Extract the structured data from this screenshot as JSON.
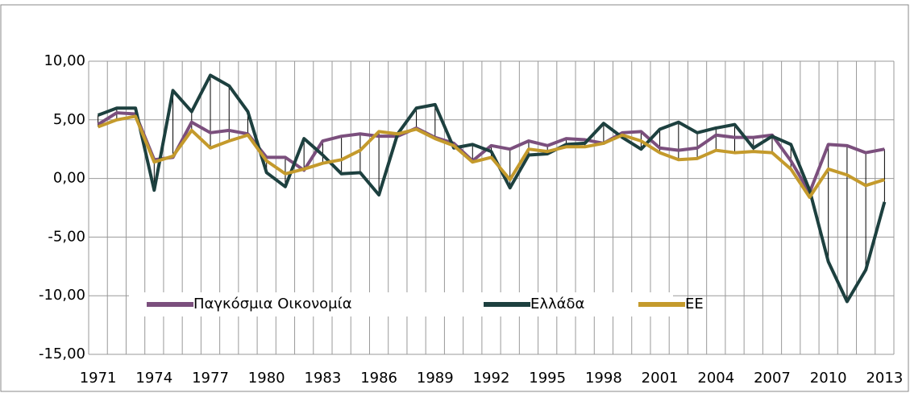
{
  "chart_data": {
    "type": "line",
    "categories": [
      "1971",
      null,
      null,
      "1974",
      null,
      null,
      "1977",
      null,
      null,
      "1980",
      null,
      null,
      "1983",
      null,
      null,
      "1986",
      null,
      null,
      "1989",
      null,
      null,
      "1992",
      null,
      null,
      "1995",
      null,
      null,
      "1998",
      null,
      null,
      "2001",
      null,
      null,
      "2004",
      null,
      null,
      "2007",
      null,
      null,
      "2010",
      null,
      null,
      "2013"
    ],
    "series": [
      {
        "name": "Παγκόσμια Οικονομία",
        "color": "#7b4f7d",
        "values": [
          4.6,
          5.6,
          5.5,
          1.6,
          1.8,
          4.8,
          3.9,
          4.1,
          3.8,
          1.8,
          1.8,
          0.7,
          3.2,
          3.6,
          3.8,
          3.6,
          3.6,
          4.3,
          3.5,
          3.0,
          1.5,
          2.8,
          2.5,
          3.2,
          2.8,
          3.4,
          3.3,
          3.0,
          3.9,
          4.0,
          2.6,
          2.4,
          2.6,
          3.7,
          3.5,
          3.5,
          3.7,
          1.5,
          -1.2,
          2.9,
          2.8,
          2.2,
          2.5
        ]
      },
      {
        "name": "Ελλάδα",
        "color": "#1d403f",
        "values": [
          5.4,
          6.0,
          6.0,
          -1.0,
          7.5,
          5.7,
          8.8,
          7.9,
          5.7,
          0.5,
          -0.7,
          3.4,
          2.0,
          0.4,
          0.5,
          -1.4,
          3.8,
          6.0,
          6.3,
          2.6,
          2.9,
          2.3,
          -0.8,
          2.0,
          2.1,
          2.9,
          3.0,
          4.7,
          3.5,
          2.5,
          4.2,
          4.8,
          3.9,
          4.3,
          4.6,
          2.6,
          3.6,
          2.9,
          -1.0,
          -7.1,
          -10.5,
          -7.8,
          -2.0
        ]
      },
      {
        "name": "ΕΕ",
        "color": "#c49a2c",
        "values": [
          4.4,
          5.0,
          5.3,
          1.4,
          1.9,
          4.1,
          2.6,
          3.2,
          3.7,
          1.5,
          0.4,
          0.8,
          1.3,
          1.6,
          2.4,
          4.0,
          3.8,
          4.2,
          3.4,
          2.8,
          1.4,
          1.8,
          -0.1,
          2.5,
          2.3,
          2.7,
          2.7,
          3.0,
          3.7,
          3.2,
          2.2,
          1.6,
          1.7,
          2.4,
          2.2,
          2.3,
          2.2,
          0.8,
          -1.6,
          0.8,
          0.3,
          -0.6,
          -0.1
        ]
      }
    ],
    "ylim": [
      -15,
      10
    ],
    "yticks": [
      {
        "value": -15,
        "label": "-15,00"
      },
      {
        "value": -10,
        "label": "-10,00"
      },
      {
        "value": -5,
        "label": "-5,00"
      },
      {
        "value": 0,
        "label": "0,00"
      },
      {
        "value": 5,
        "label": "5,00"
      },
      {
        "value": 10,
        "label": "10,00"
      }
    ],
    "grid": true,
    "high_low_lines": true,
    "legend": "lower left"
  }
}
